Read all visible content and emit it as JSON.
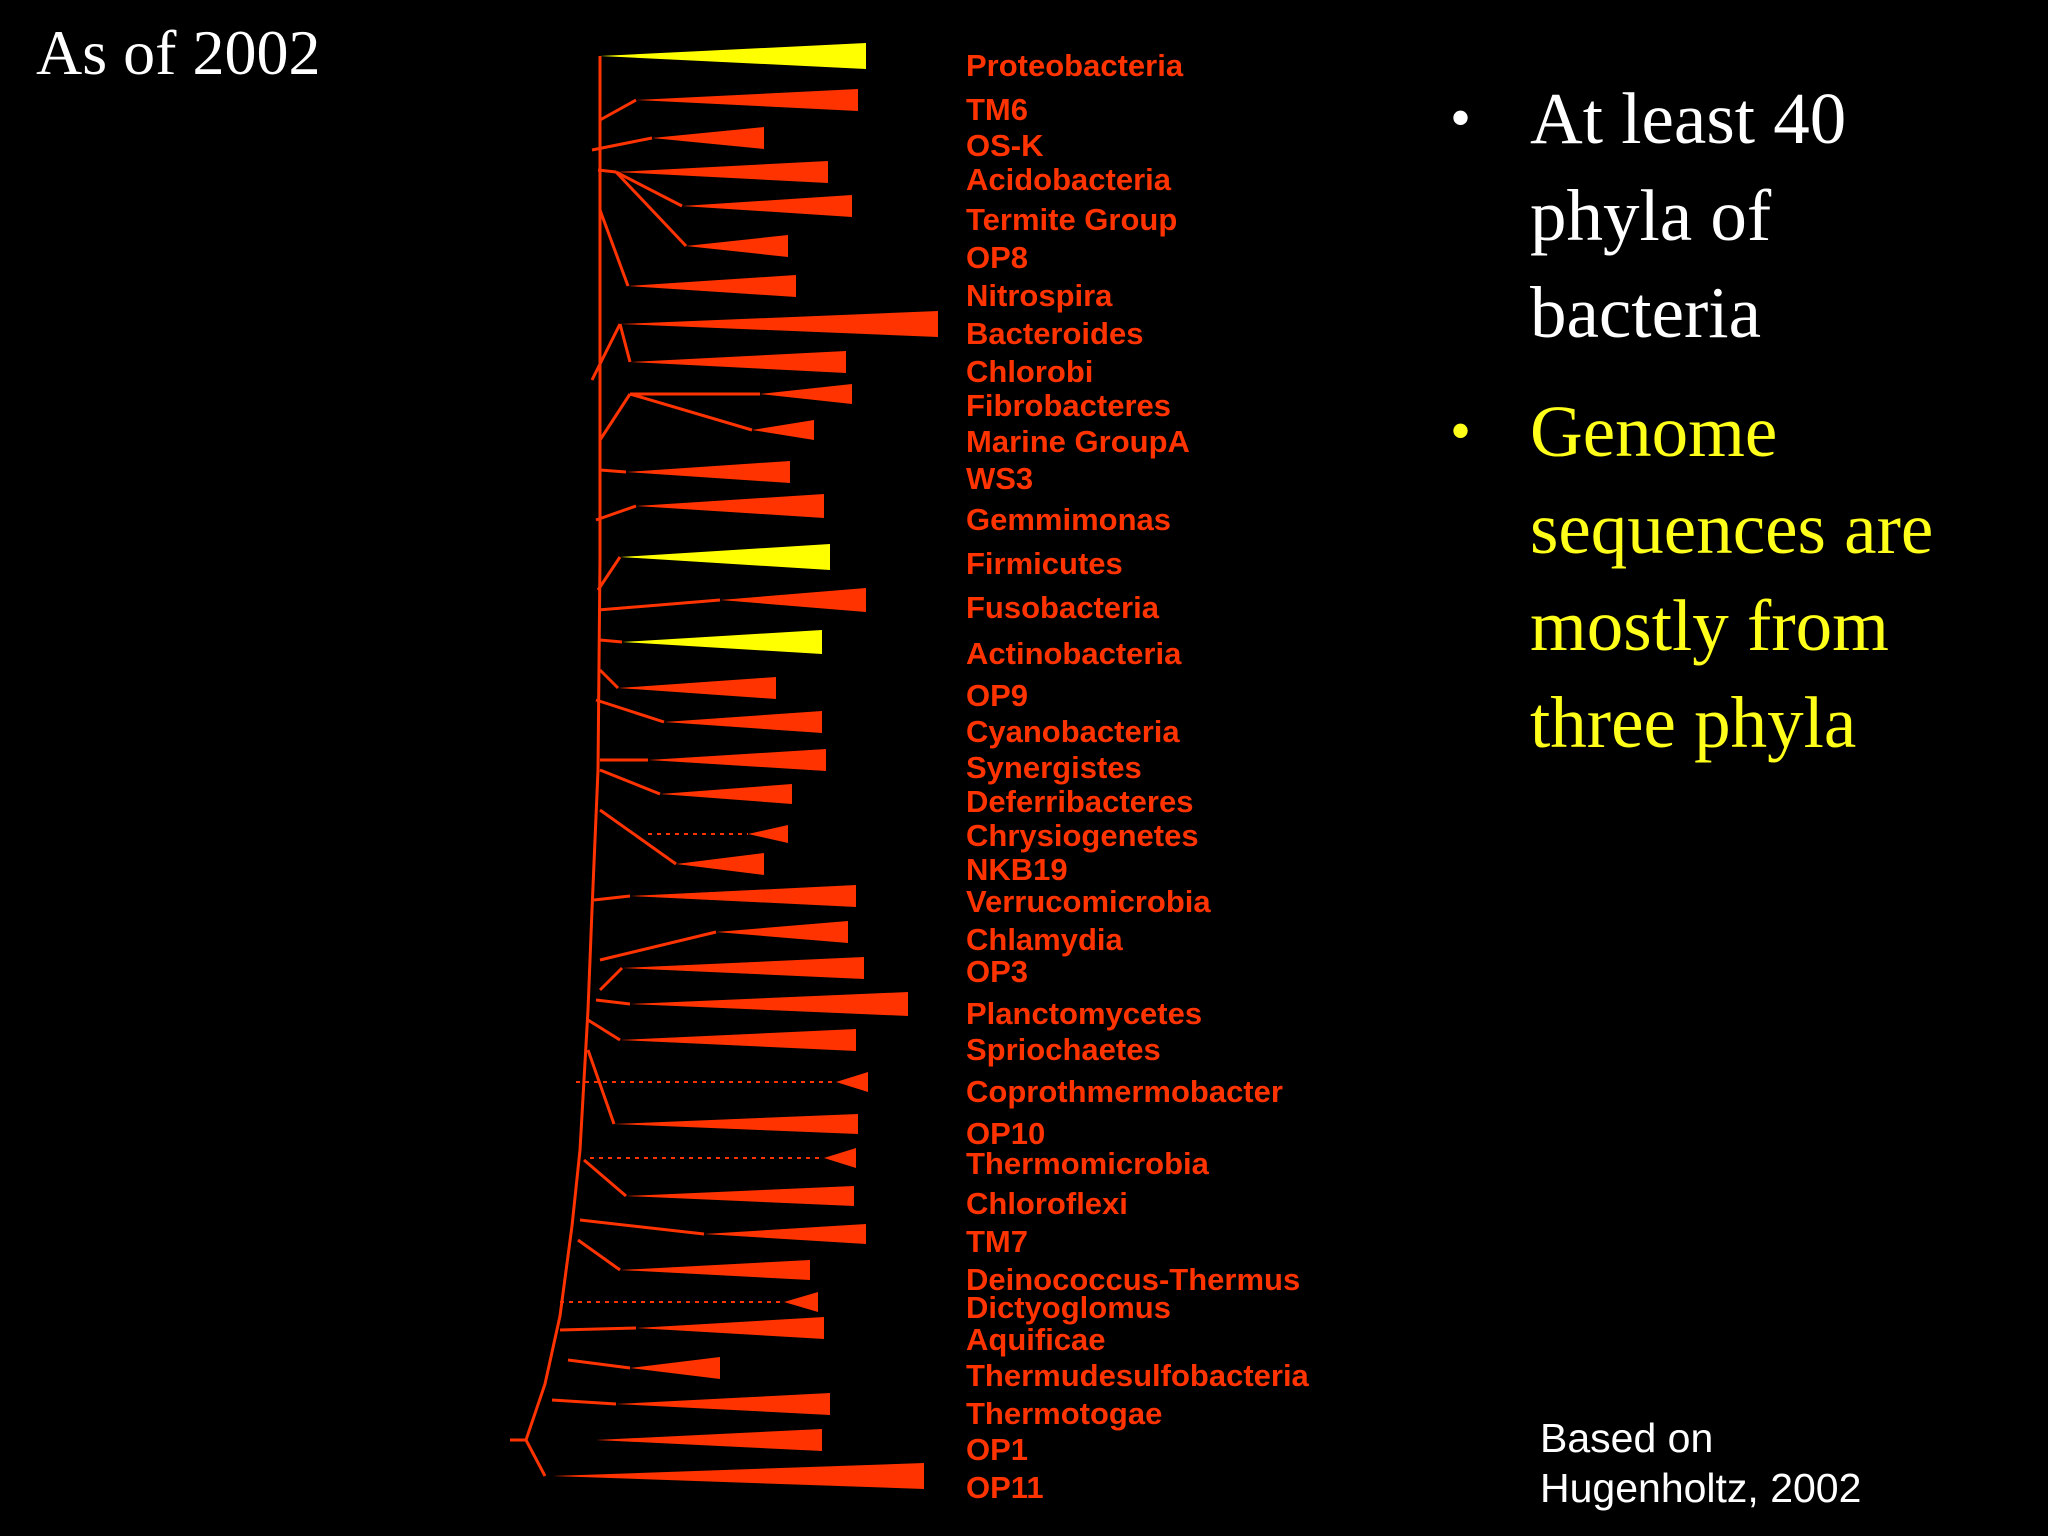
{
  "slide": {
    "title": "As of 2002",
    "bullets": [
      {
        "text": "At least 40 phyla of bacteria",
        "lines": [
          "At least 40",
          "phyla of",
          "bacteria"
        ],
        "color": "#ffffff"
      },
      {
        "text": "Genome sequences are mostly from three phyla",
        "lines": [
          "Genome",
          "sequences are",
          "mostly from",
          "three phyla"
        ],
        "color": "#ffff1a"
      }
    ],
    "source_lines": [
      "Based on",
      "Hugenholtz, 2002"
    ]
  },
  "tree": {
    "line_color": "#ff3300",
    "label_color": "#ff3300",
    "highlight_color": "#ffff00",
    "phyla": [
      {
        "name": "Proteobacteria",
        "highlight": true
      },
      {
        "name": "TM6",
        "highlight": false
      },
      {
        "name": "OS-K",
        "highlight": false
      },
      {
        "name": "Acidobacteria",
        "highlight": false
      },
      {
        "name": "Termite Group",
        "highlight": false
      },
      {
        "name": "OP8",
        "highlight": false
      },
      {
        "name": "Nitrospira",
        "highlight": false
      },
      {
        "name": "Bacteroides",
        "highlight": false
      },
      {
        "name": "Chlorobi",
        "highlight": false
      },
      {
        "name": "Fibrobacteres",
        "highlight": false
      },
      {
        "name": "Marine GroupA",
        "highlight": false
      },
      {
        "name": "WS3",
        "highlight": false
      },
      {
        "name": "Gemmimonas",
        "highlight": false
      },
      {
        "name": "Firmicutes",
        "highlight": true
      },
      {
        "name": "Fusobacteria",
        "highlight": false
      },
      {
        "name": "Actinobacteria",
        "highlight": true
      },
      {
        "name": "OP9",
        "highlight": false
      },
      {
        "name": "Cyanobacteria",
        "highlight": false
      },
      {
        "name": "Synergistes",
        "highlight": false
      },
      {
        "name": "Deferribacteres",
        "highlight": false
      },
      {
        "name": "Chrysiogenetes",
        "highlight": false
      },
      {
        "name": "NKB19",
        "highlight": false
      },
      {
        "name": "Verrucomicrobia",
        "highlight": false
      },
      {
        "name": "Chlamydia",
        "highlight": false
      },
      {
        "name": "OP3",
        "highlight": false
      },
      {
        "name": "Planctomycetes",
        "highlight": false
      },
      {
        "name": "Spriochaetes",
        "highlight": false
      },
      {
        "name": "Coprothmermobacter",
        "highlight": false
      },
      {
        "name": "OP10",
        "highlight": false
      },
      {
        "name": "Thermomicrobia",
        "highlight": false
      },
      {
        "name": "Chloroflexi",
        "highlight": false
      },
      {
        "name": "TM7",
        "highlight": false
      },
      {
        "name": "Deinococcus-Thermus",
        "highlight": false
      },
      {
        "name": "Dictyoglomus",
        "highlight": false
      },
      {
        "name": "Aquificae",
        "highlight": false
      },
      {
        "name": "Thermudesulfobacteria",
        "highlight": false
      },
      {
        "name": "Thermotogae",
        "highlight": false
      },
      {
        "name": "OP1",
        "highlight": false
      },
      {
        "name": "OP11",
        "highlight": false
      }
    ]
  }
}
